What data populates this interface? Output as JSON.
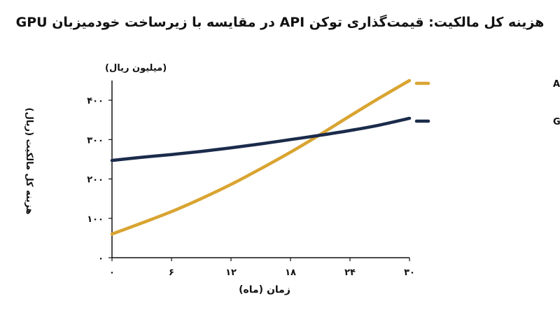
{
  "chart_data": {
    "type": "line",
    "title": "هزینه کل مالکیت: قیمت‌گذاری توکن API در مقایسه با زیرساخت خودمیزبان GPU",
    "xlabel": "زمان (ماه)",
    "ylabel": "هزینه کل مالکیت (ریال)",
    "y_unit_label": "(میلیون ریال)",
    "x_ticks": [
      0,
      6,
      12,
      18,
      24,
      30
    ],
    "x_tick_labels": [
      "۰",
      "۶",
      "۱۲",
      "۱۸",
      "۲۴",
      "۳۰"
    ],
    "y_ticks": [
      0,
      100,
      200,
      300,
      400
    ],
    "y_tick_labels": [
      "۰",
      "۱۰۰",
      "۲۰۰",
      "۳۰۰",
      "۴۰۰"
    ],
    "xlim": [
      0,
      30
    ],
    "ylim": [
      0,
      450
    ],
    "grid": false,
    "legend_position": "right",
    "series": [
      {
        "name": "قیمت‌گذاری توکن API",
        "color": "#D9A431",
        "x": [
          0,
          3,
          6,
          9,
          12,
          15,
          18,
          21,
          24,
          27,
          30
        ],
        "y": [
          60,
          88,
          117,
          150,
          186,
          226,
          268,
          313,
          360,
          406,
          450
        ]
      },
      {
        "name": "زیرساخت خودمیزبان GPU",
        "color": "#1B2B4B",
        "x": [
          0,
          3,
          6,
          9,
          12,
          15,
          18,
          21,
          24,
          27,
          30
        ],
        "y": [
          247,
          255,
          262,
          270,
          279,
          289,
          300,
          311,
          323,
          337,
          354
        ]
      }
    ]
  }
}
